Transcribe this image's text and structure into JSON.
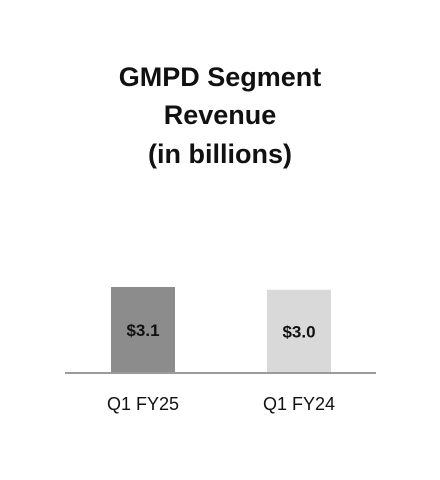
{
  "chart_data": {
    "type": "bar",
    "title_lines": [
      "GMPD Segment",
      "Revenue",
      "(in billions)"
    ],
    "categories": [
      "Q1 FY25",
      "Q1 FY24"
    ],
    "values": [
      3.1,
      3.0
    ],
    "data_labels": [
      "$3.1",
      "$3.0"
    ],
    "bar_colors": [
      "#8c8c8c",
      "#d9d9d9"
    ],
    "axis_color": "#9a9a9a",
    "xlabel": "",
    "ylabel": "",
    "ylim": [
      0,
      3.1
    ],
    "grid": false,
    "legend": "none"
  }
}
